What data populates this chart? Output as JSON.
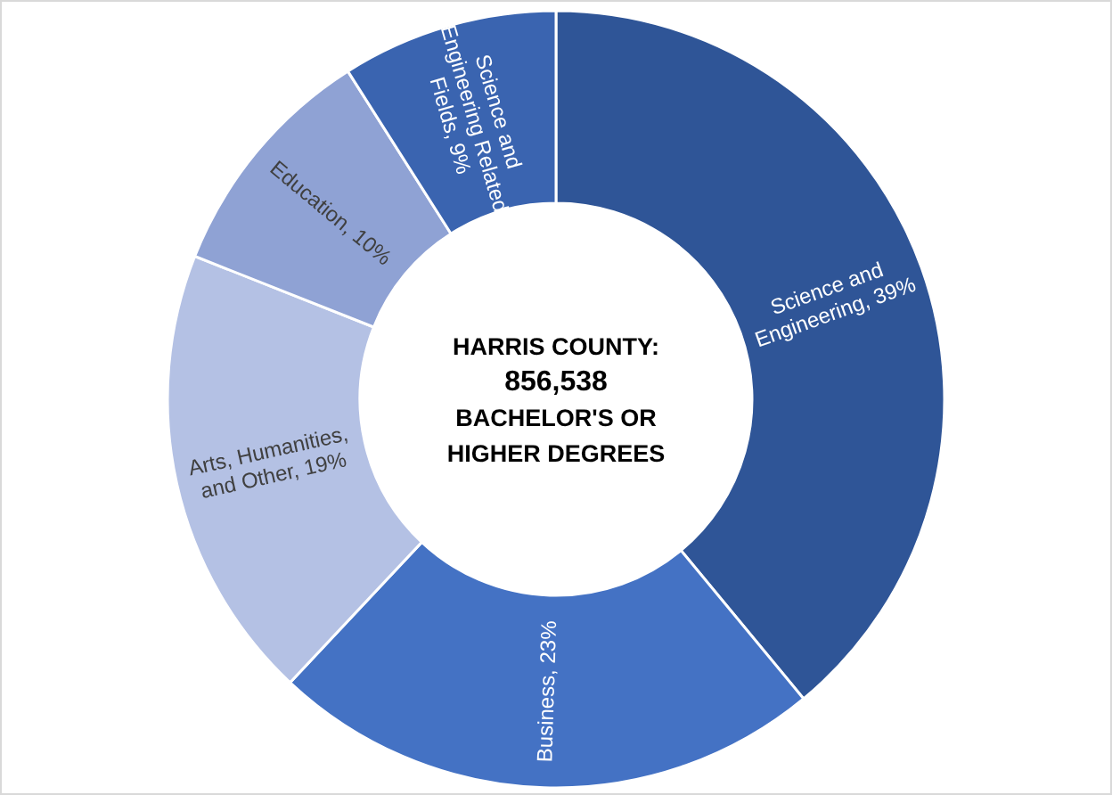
{
  "chart_data": {
    "type": "donut",
    "title": "HARRIS COUNTY:",
    "subtitle": "856,538",
    "annotations": [
      "BACHELOR'S OR HIGHER DEGREES"
    ],
    "categories": [
      "Science and Engineering",
      "Business",
      "Arts, Humanities, and Other",
      "Education",
      "Science and Engineering Related Fields"
    ],
    "values": [
      39,
      23,
      19,
      10,
      9
    ],
    "value_labels": [
      ", 39%",
      ", 23%",
      ", 19%",
      ", 10%",
      ", 9%"
    ],
    "colors": [
      "#2f5597",
      "#4472c4",
      "#b4c1e4",
      "#8fa2d4",
      "#3a64b0"
    ]
  }
}
